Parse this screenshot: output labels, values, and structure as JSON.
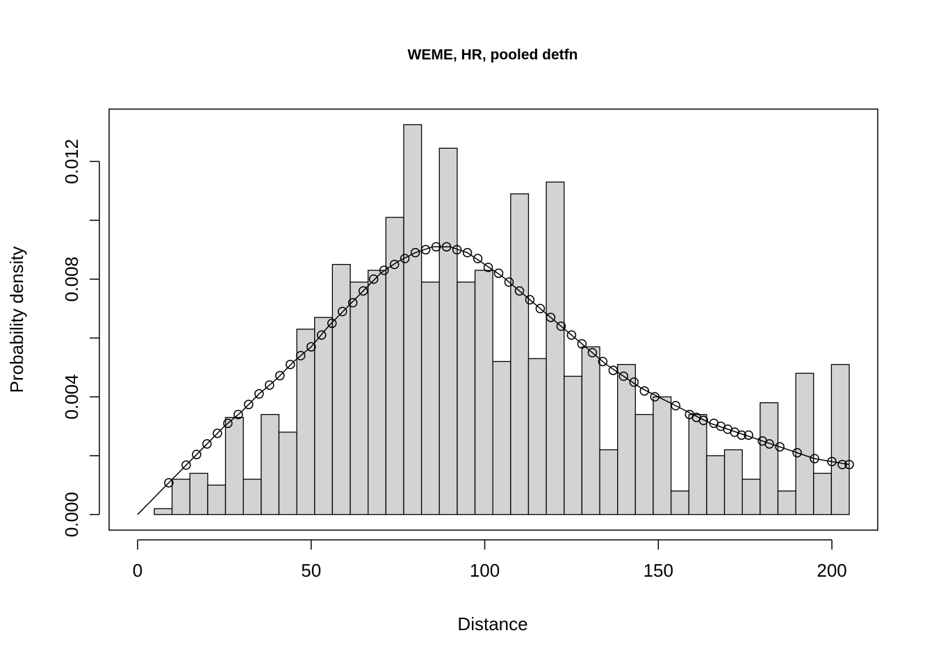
{
  "chart_data": {
    "type": "histogram",
    "title": "WEME, HR, pooled detfn",
    "x_label": "Distance",
    "y_label": "Probability density",
    "bins": [
      4.8,
      9.93,
      15.07,
      20.2,
      25.33,
      30.47,
      35.6,
      40.73,
      45.87,
      51,
      56.13,
      61.27,
      66.4,
      71.53,
      76.67,
      81.8,
      86.93,
      92.07,
      97.2,
      102.33,
      107.47,
      112.6,
      117.73,
      122.87,
      128,
      133.13,
      138.27,
      143.4,
      148.53,
      153.67,
      158.8,
      163.93,
      169.07,
      174.2,
      179.33,
      184.47,
      189.6,
      194.73,
      199.87,
      205
    ],
    "values": [
      0.0002,
      0.0012,
      0.0014,
      0.001,
      0.0033,
      0.0012,
      0.0034,
      0.0028,
      0.0063,
      0.0067,
      0.0085,
      0.0079,
      0.0083,
      0.0101,
      0.01325,
      0.0079,
      0.01245,
      0.0079,
      0.0083,
      0.0052,
      0.0109,
      0.0053,
      0.0113,
      0.0047,
      0.0057,
      0.0022,
      0.0051,
      0.0034,
      0.004,
      0.0008,
      0.0034,
      0.002,
      0.0022,
      0.0012,
      0.0038,
      0.0008,
      0.0048,
      0.0014,
      0.0051
    ],
    "color": "#d3d3d3",
    "curve": {
      "color": "#000000",
      "x": [
        0,
        5,
        10,
        15,
        20,
        25,
        30,
        35,
        40,
        45,
        50,
        55,
        60,
        65,
        70,
        75,
        80,
        85,
        90,
        95,
        100,
        105,
        110,
        115,
        120,
        125,
        130,
        135,
        140,
        145,
        150,
        155,
        160,
        165,
        170,
        175,
        180,
        185,
        190,
        195,
        200,
        205
      ],
      "y": [
        0,
        0.0006,
        0.0012,
        0.0018,
        0.0024,
        0.003,
        0.0035,
        0.0041,
        0.0046,
        0.0052,
        0.0057,
        0.0064,
        0.007,
        0.0076,
        0.0082,
        0.0086,
        0.0089,
        0.0091,
        0.0091,
        0.0089,
        0.0085,
        0.0081,
        0.0076,
        0.0071,
        0.0066,
        0.0061,
        0.0056,
        0.0051,
        0.0047,
        0.0043,
        0.004,
        0.0037,
        0.0034,
        0.0031,
        0.0029,
        0.0027,
        0.0025,
        0.0023,
        0.0021,
        0.0019,
        0.0018,
        0.0017
      ]
    },
    "points": {
      "color": "#000000",
      "x": [
        9,
        14,
        17,
        20,
        23,
        26,
        29,
        32,
        35,
        38,
        41,
        44,
        47,
        50,
        53,
        56,
        59,
        62,
        65,
        68,
        71,
        74,
        77,
        80,
        83,
        86,
        89,
        92,
        95,
        98,
        101,
        104,
        107,
        110,
        113,
        116,
        119,
        122,
        125,
        128,
        131,
        134,
        137,
        140,
        143,
        146,
        149,
        155,
        159,
        161,
        163,
        166,
        168,
        170,
        172,
        174,
        176,
        180,
        182,
        185,
        190,
        195,
        200,
        203,
        205
      ],
      "y": [
        0.00108,
        0.00168,
        0.00204,
        0.0024,
        0.00276,
        0.0031,
        0.0034,
        0.00374,
        0.0041,
        0.0044,
        0.00472,
        0.0051,
        0.0054,
        0.0057,
        0.0061,
        0.0065,
        0.0069,
        0.0072,
        0.0076,
        0.008,
        0.0083,
        0.0085,
        0.0087,
        0.0089,
        0.009,
        0.0091,
        0.0091,
        0.009,
        0.0089,
        0.0087,
        0.0084,
        0.0082,
        0.0079,
        0.0076,
        0.0073,
        0.007,
        0.0067,
        0.0064,
        0.0061,
        0.0058,
        0.0055,
        0.0052,
        0.0049,
        0.0047,
        0.0045,
        0.0042,
        0.004,
        0.0037,
        0.0034,
        0.0033,
        0.0032,
        0.0031,
        0.003,
        0.0029,
        0.0028,
        0.0027,
        0.0027,
        0.0025,
        0.0024,
        0.0023,
        0.0021,
        0.0019,
        0.0018,
        0.0017,
        0.0017
      ]
    },
    "xlim": [
      -8.2,
      213.2
    ],
    "ylim": [
      -0.00053,
      0.01378
    ],
    "xticks": [
      0,
      50,
      100,
      150,
      200
    ],
    "yticks": [
      {
        "value": 0,
        "label": "0.000"
      },
      {
        "value": 0.002,
        "label": null
      },
      0.004,
      {
        "value": 0.006,
        "label": null
      },
      0.008,
      {
        "value": 0.01,
        "label": null
      },
      0.012
    ]
  }
}
